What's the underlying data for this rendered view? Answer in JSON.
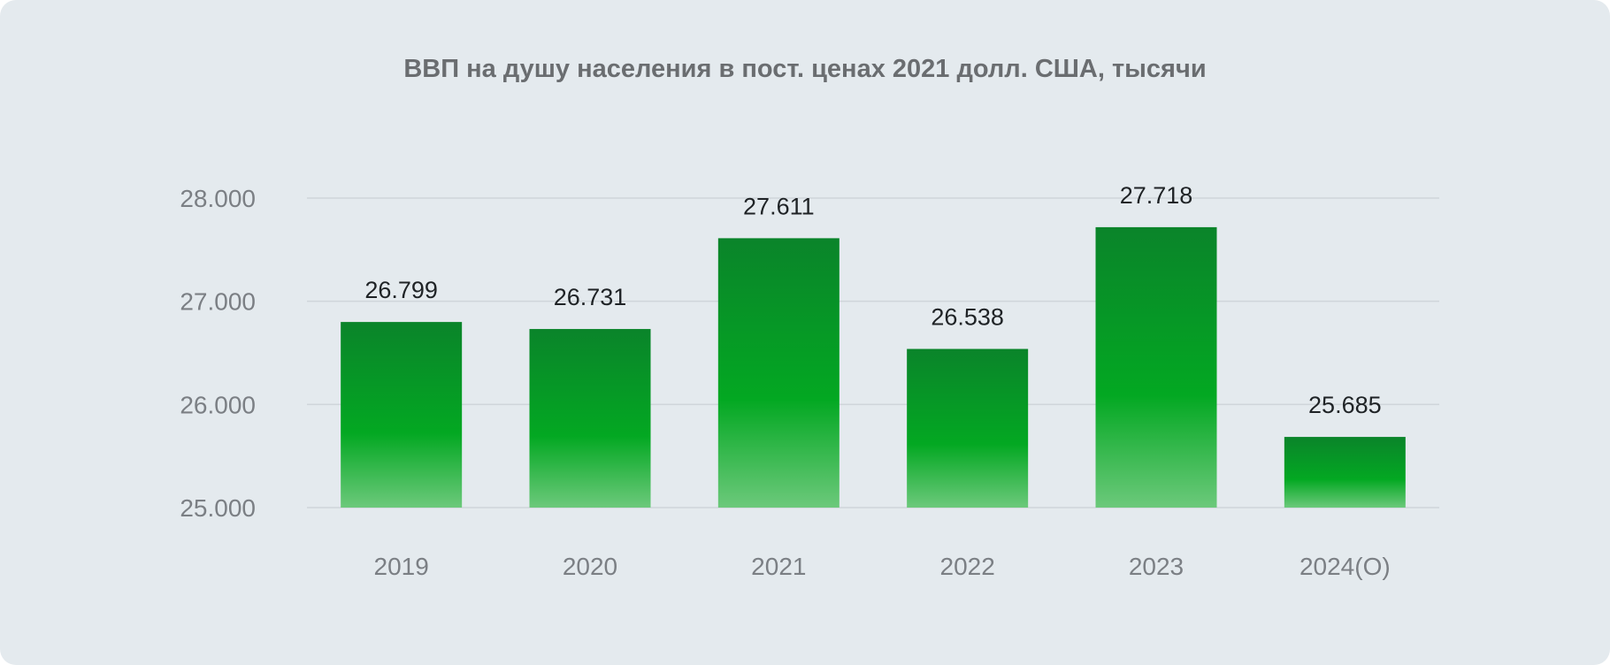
{
  "chart_data": {
    "type": "bar",
    "title": "ВВП на душу населения в пост. ценах 2021 долл. США, тысячи",
    "xlabel": "",
    "ylabel": "",
    "categories": [
      "2019",
      "2020",
      "2021",
      "2022",
      "2023",
      "2024(О)"
    ],
    "values": [
      26.799,
      26.731,
      27.611,
      26.538,
      27.718,
      25.685
    ],
    "data_labels": [
      "26.799",
      "26.731",
      "27.611",
      "26.538",
      "27.718",
      "25.685"
    ],
    "yticks": [
      25,
      26,
      27,
      28
    ],
    "ytick_labels": [
      "25.000",
      "26.000",
      "27.000",
      "28.000"
    ],
    "ylim": [
      25,
      28
    ],
    "grid": true,
    "legend": "none",
    "colors": {
      "background": "#e4eaee",
      "bar_top": "#0a842a",
      "bar_mid": "#03a822",
      "bar_bottom": "#6cc97b",
      "grid": "#cfd5da"
    }
  }
}
